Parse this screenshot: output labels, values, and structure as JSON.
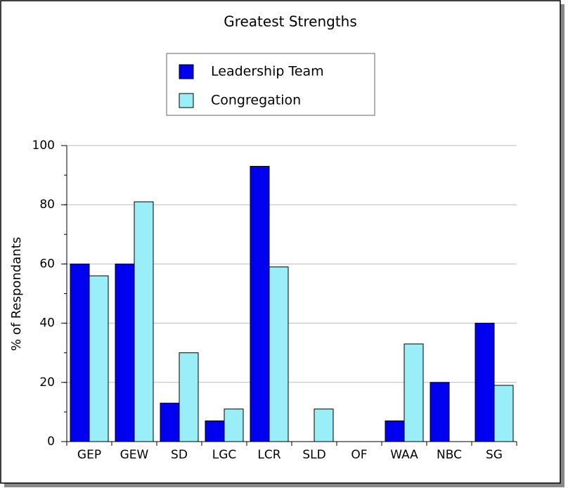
{
  "chart_data": {
    "type": "bar",
    "title": "Greatest Strengths",
    "y_label": "% of Respondants",
    "categories": [
      "GEP",
      "GEW",
      "SD",
      "LGC",
      "LCR",
      "SLD",
      "OF",
      "WAA",
      "NBC",
      "SG"
    ],
    "series": [
      {
        "name": "Leadership Team",
        "color": "#0000ee",
        "values": [
          60,
          60,
          13,
          7,
          93,
          0,
          0,
          7,
          20,
          40
        ]
      },
      {
        "name": "Congregation",
        "color": "#99eef8",
        "values": [
          56,
          81,
          30,
          11,
          59,
          11,
          0,
          33,
          0,
          19
        ]
      }
    ],
    "ylim": [
      0,
      100
    ],
    "yticks": [
      0,
      20,
      40,
      60,
      80,
      100
    ],
    "grid": true
  }
}
